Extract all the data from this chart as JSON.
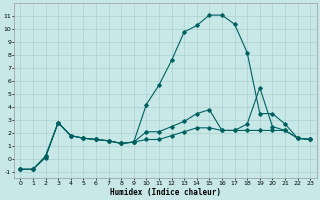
{
  "xlabel": "Humidex (Indice chaleur)",
  "background_color": "#c8e8e8",
  "grid_color": "#afd0d0",
  "line_color": "#006060",
  "xlim": [
    -0.5,
    23.5
  ],
  "ylim": [
    -1.5,
    12.0
  ],
  "xticks": [
    0,
    1,
    2,
    3,
    4,
    5,
    6,
    7,
    8,
    9,
    10,
    11,
    12,
    13,
    14,
    15,
    16,
    17,
    18,
    19,
    20,
    21,
    22,
    23
  ],
  "yticks": [
    -1,
    0,
    1,
    2,
    3,
    4,
    5,
    6,
    7,
    8,
    9,
    10,
    11
  ],
  "line1_x": [
    0,
    1,
    2,
    3,
    4,
    5,
    6,
    7,
    8,
    9,
    10,
    11,
    12,
    13,
    14,
    15,
    16,
    17,
    18,
    19,
    20,
    21,
    22,
    23
  ],
  "line1_y": [
    -0.8,
    -0.8,
    0.1,
    2.8,
    1.8,
    1.6,
    1.5,
    1.4,
    1.2,
    1.3,
    4.2,
    5.7,
    7.6,
    9.8,
    10.3,
    11.1,
    11.1,
    10.4,
    8.2,
    3.5,
    3.5,
    2.7,
    1.6,
    1.5
  ],
  "line2_x": [
    0,
    1,
    2,
    3,
    4,
    5,
    6,
    7,
    8,
    9,
    10,
    11,
    12,
    13,
    14,
    15,
    16,
    17,
    18,
    19,
    20,
    21,
    22,
    23
  ],
  "line2_y": [
    -0.8,
    -0.8,
    0.2,
    2.8,
    1.8,
    1.6,
    1.5,
    1.4,
    1.2,
    1.3,
    2.1,
    2.1,
    2.5,
    2.9,
    3.5,
    3.8,
    2.2,
    2.2,
    2.7,
    5.5,
    2.5,
    2.2,
    1.6,
    1.5
  ],
  "line3_x": [
    0,
    1,
    2,
    3,
    4,
    5,
    6,
    7,
    8,
    9,
    10,
    11,
    12,
    13,
    14,
    15,
    16,
    17,
    18,
    19,
    20,
    21,
    22,
    23
  ],
  "line3_y": [
    -0.8,
    -0.8,
    0.2,
    2.8,
    1.8,
    1.6,
    1.5,
    1.4,
    1.2,
    1.3,
    1.5,
    1.5,
    1.8,
    2.1,
    2.4,
    2.4,
    2.2,
    2.2,
    2.2,
    2.2,
    2.2,
    2.2,
    1.6,
    1.5
  ]
}
